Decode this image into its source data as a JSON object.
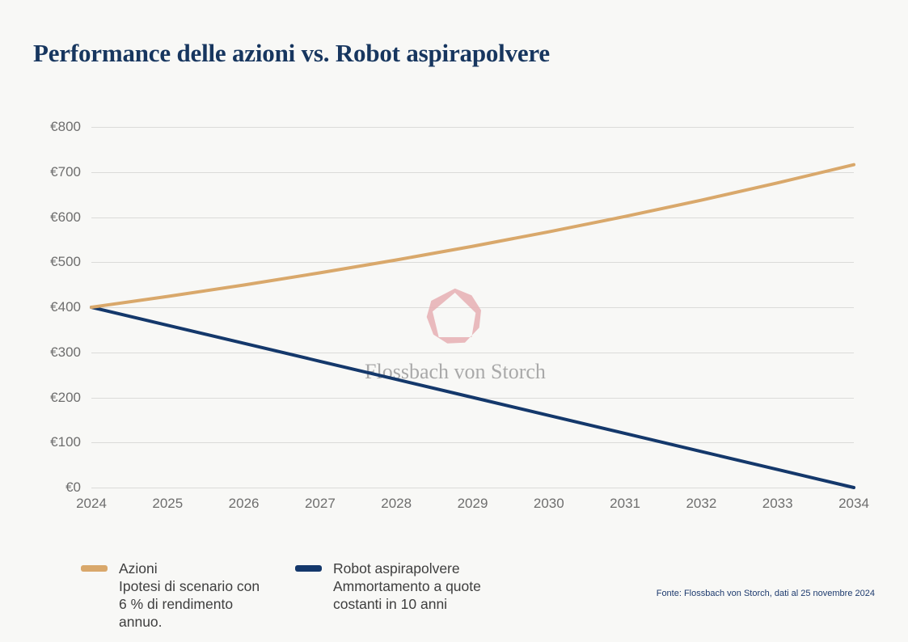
{
  "title": "Performance delle azioni vs. Robot aspirapolvere",
  "colors": {
    "background": "#f8f8f6",
    "title": "#17365f",
    "axis_text": "#6e6e6e",
    "gridline": "#dbdbd9",
    "azioni_line": "#d9a86b",
    "robot_line": "#14386b",
    "legend_text": "#3e3e3e",
    "source_text": "#1d3a6e"
  },
  "chart_data": {
    "type": "line",
    "x": [
      2024,
      2025,
      2026,
      2027,
      2028,
      2029,
      2030,
      2031,
      2032,
      2033,
      2034
    ],
    "series": [
      {
        "name": "Azioni",
        "color": "#d9a86b",
        "values": [
          400,
          424,
          449.4,
          476.4,
          505,
          535.3,
          567.4,
          601.5,
          637.5,
          675.8,
          716.3
        ]
      },
      {
        "name": "Robot aspirapolvere",
        "color": "#14386b",
        "values": [
          400,
          360,
          320,
          280,
          240,
          200,
          160,
          120,
          80,
          40,
          0
        ]
      }
    ],
    "title": "Performance delle azioni vs. Robot aspirapolvere",
    "xlabel": "",
    "ylabel": "",
    "ylim": [
      0,
      800
    ],
    "yticks": [
      800,
      700,
      600,
      500,
      400,
      300,
      200,
      100,
      0
    ],
    "ytick_labels": [
      "€800",
      "€700",
      "€600",
      "€500",
      "€400",
      "€300",
      "€200",
      "€100",
      "€0"
    ],
    "grid": true,
    "legend_position": "bottom-left"
  },
  "watermark": {
    "brand": "Flossbach von Storch",
    "logo_color": "#e7b0b4",
    "text_color": "#a9a9a9"
  },
  "legend": {
    "items": [
      {
        "label": "Azioni",
        "color": "#d9a86b",
        "desc_lines": [
          "Ipotesi di scenario con",
          "6 % di rendimento",
          "annuo."
        ]
      },
      {
        "label": "Robot aspirapolvere",
        "color": "#14386b",
        "desc_lines": [
          "Ammortamento a quote",
          "costanti in 10 anni",
          ""
        ]
      }
    ]
  },
  "footer": {
    "source": "Fonte: Flossbach von Storch, dati al 25 novembre 2024"
  }
}
